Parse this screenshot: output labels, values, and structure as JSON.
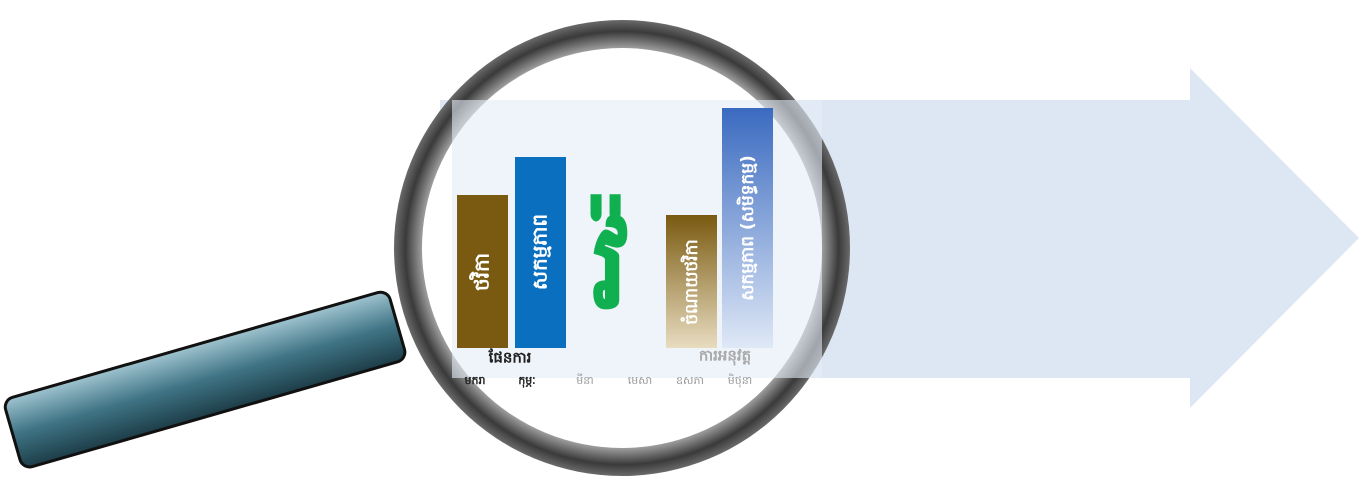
{
  "bars": [
    {
      "label": "ថវិកា"
    },
    {
      "label": "សកម្មភាព"
    },
    {
      "label": "ចំណាយថវិកា"
    },
    {
      "label": "សកម្មភាព (សមិទ្ធកម្ម)"
    }
  ],
  "center_glyph": "វ៉",
  "groups": {
    "plan": "ផែនការ",
    "actual": "ការអនុវត្ត"
  },
  "months": [
    "មករា",
    "កុម្ភៈ",
    "មីនា",
    "មេសា",
    "ឧសភា",
    "មិថុនា"
  ]
}
